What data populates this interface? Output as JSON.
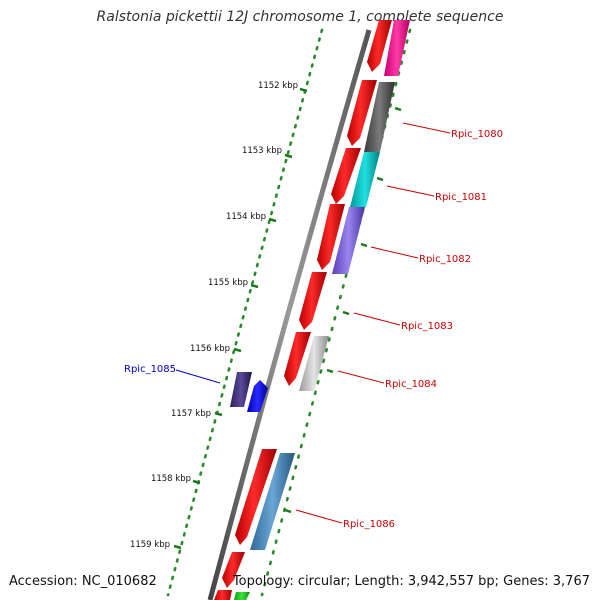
{
  "title": "Ralstonia pickettii 12J chromosome 1, complete sequence",
  "accession_text": "Accession: NC_010682",
  "topology_text": "Topology: circular; Length: 3,942,557 bp; Genes: 3,767",
  "ticks": [
    {
      "label": "1152 kbp"
    },
    {
      "label": "1153 kbp"
    },
    {
      "label": "1154 kbp"
    },
    {
      "label": "1155 kbp"
    },
    {
      "label": "1156 kbp"
    },
    {
      "label": "1157 kbp"
    },
    {
      "label": "1158 kbp"
    },
    {
      "label": "1159 kbp"
    }
  ],
  "gene_labels": [
    {
      "name": "Rpic_1080",
      "color": "#cc0000"
    },
    {
      "name": "Rpic_1081",
      "color": "#cc0000"
    },
    {
      "name": "Rpic_1082",
      "color": "#cc0000"
    },
    {
      "name": "Rpic_1083",
      "color": "#cc0000"
    },
    {
      "name": "Rpic_1084",
      "color": "#cc0000"
    },
    {
      "name": "Rpic_1085",
      "color": "#0000cc"
    },
    {
      "name": "Rpic_1086",
      "color": "#cc0000"
    }
  ],
  "colors": {
    "backbone": "#777777",
    "cds_forward": "#ee0000",
    "tick": "#1a7a1a",
    "dots": "#2a8a2a"
  }
}
